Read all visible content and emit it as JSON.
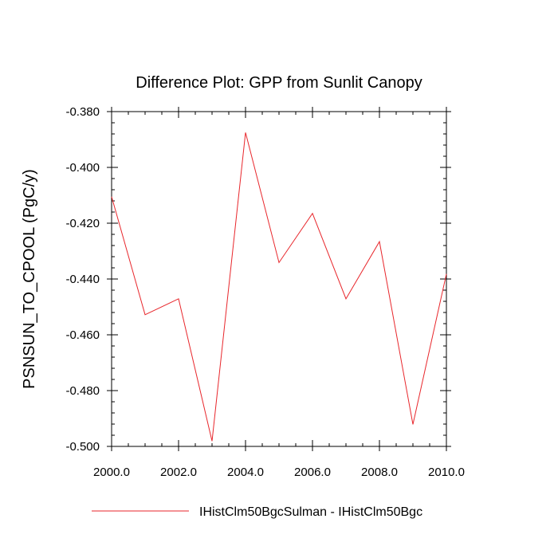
{
  "chart_data": {
    "type": "line",
    "title": "Difference Plot: GPP from Sunlit Canopy",
    "xlabel": "",
    "ylabel": "PSNSUN_TO_CPOOL  (PgC/y)",
    "xlim": [
      2000,
      2010
    ],
    "ylim": [
      -0.5,
      -0.38
    ],
    "x_ticks": [
      2000,
      2002,
      2004,
      2006,
      2008,
      2010
    ],
    "x_tick_labels": [
      "2000.0",
      "2002.0",
      "2004.0",
      "2006.0",
      "2008.0",
      "2010.0"
    ],
    "y_ticks": [
      -0.38,
      -0.4,
      -0.42,
      -0.44,
      -0.46,
      -0.48,
      -0.5
    ],
    "y_tick_labels": [
      "-0.380",
      "-0.400",
      "-0.420",
      "-0.440",
      "-0.460",
      "-0.480",
      "-0.500"
    ],
    "grid": false,
    "legend_position": "bottom",
    "series": [
      {
        "name": "IHistClm50BgcSulman - IHistClm50Bgc",
        "color": "#e8262b",
        "x": [
          2000,
          2001,
          2002,
          2003,
          2004,
          2005,
          2006,
          2007,
          2008,
          2009,
          2010
        ],
        "values": [
          -0.4105,
          -0.4528,
          -0.4471,
          -0.4981,
          -0.3875,
          -0.4341,
          -0.4165,
          -0.4471,
          -0.4266,
          -0.4921,
          -0.4382
        ]
      }
    ]
  }
}
